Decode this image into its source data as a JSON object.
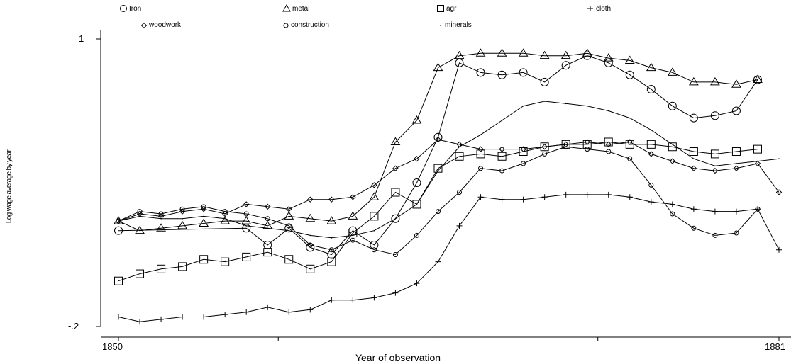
{
  "chart_data": {
    "type": "line",
    "xlabel": "Year of observation",
    "ylabel": "Log wage average by year",
    "xlim": [
      1850,
      1881
    ],
    "ylim": [
      -0.2,
      1
    ],
    "x_ticks": [
      "1850",
      "1881"
    ],
    "y_ticks": [
      "1",
      "-.2"
    ],
    "legend_position": "top",
    "series": [
      {
        "name": "Iron",
        "marker": "circle-large",
        "x": [
          1850,
          1856,
          1857,
          1858,
          1859,
          1860,
          1861,
          1862,
          1863,
          1864,
          1865,
          1866,
          1867,
          1868,
          1869,
          1870,
          1871,
          1872,
          1873,
          1874,
          1875,
          1876,
          1877,
          1878,
          1879,
          1880
        ],
        "y": [
          0.2,
          0.21,
          0.14,
          0.21,
          0.13,
          0.1,
          0.2,
          0.14,
          0.25,
          0.4,
          0.59,
          0.9,
          0.86,
          0.85,
          0.86,
          0.82,
          0.89,
          0.93,
          0.9,
          0.85,
          0.79,
          0.72,
          0.67,
          0.68,
          0.7,
          0.83
        ]
      },
      {
        "name": "metal",
        "marker": "triangle",
        "x": [
          1850,
          1851,
          1852,
          1853,
          1854,
          1855,
          1856,
          1857,
          1858,
          1859,
          1860,
          1861,
          1862,
          1863,
          1864,
          1865,
          1866,
          1867,
          1868,
          1869,
          1870,
          1871,
          1872,
          1873,
          1874,
          1875,
          1876,
          1877,
          1878,
          1879,
          1880
        ],
        "y": [
          0.24,
          0.2,
          0.21,
          0.22,
          0.23,
          0.24,
          0.24,
          0.22,
          0.26,
          0.25,
          0.24,
          0.26,
          0.34,
          0.57,
          0.66,
          0.88,
          0.93,
          0.94,
          0.94,
          0.94,
          0.93,
          0.93,
          0.94,
          0.92,
          0.91,
          0.88,
          0.86,
          0.82,
          0.82,
          0.81,
          0.83
        ]
      },
      {
        "name": "agr",
        "marker": "square",
        "x": [
          1850,
          1851,
          1852,
          1853,
          1854,
          1855,
          1856,
          1857,
          1858,
          1859,
          1860,
          1861,
          1862,
          1863,
          1864,
          1865,
          1866,
          1867,
          1868,
          1869,
          1870,
          1871,
          1872,
          1873,
          1874,
          1875,
          1876,
          1877,
          1878,
          1879,
          1880
        ],
        "y": [
          -0.01,
          0.02,
          0.04,
          0.05,
          0.08,
          0.07,
          0.09,
          0.11,
          0.08,
          0.04,
          0.07,
          0.19,
          0.26,
          0.36,
          0.31,
          0.46,
          0.51,
          0.52,
          0.51,
          0.53,
          0.55,
          0.56,
          0.56,
          0.57,
          0.56,
          0.56,
          0.55,
          0.53,
          0.52,
          0.53,
          0.54
        ]
      },
      {
        "name": "cloth",
        "marker": "plus",
        "x": [
          1850,
          1851,
          1852,
          1853,
          1854,
          1855,
          1856,
          1857,
          1858,
          1859,
          1860,
          1861,
          1862,
          1863,
          1864,
          1865,
          1866,
          1867,
          1868,
          1869,
          1870,
          1871,
          1872,
          1873,
          1874,
          1875,
          1876,
          1877,
          1878,
          1879,
          1880,
          1881
        ],
        "y": [
          -0.16,
          -0.18,
          -0.17,
          -0.16,
          -0.16,
          -0.15,
          -0.14,
          -0.12,
          -0.14,
          -0.13,
          -0.09,
          -0.09,
          -0.08,
          -0.06,
          -0.02,
          0.07,
          0.22,
          0.34,
          0.33,
          0.33,
          0.34,
          0.35,
          0.35,
          0.35,
          0.34,
          0.32,
          0.31,
          0.29,
          0.28,
          0.28,
          0.29,
          0.12
        ]
      },
      {
        "name": "woodwork",
        "marker": "diamond",
        "x": [
          1850,
          1851,
          1852,
          1853,
          1854,
          1855,
          1856,
          1857,
          1858,
          1859,
          1860,
          1861,
          1862,
          1863,
          1864,
          1865,
          1866,
          1867,
          1868,
          1869,
          1870,
          1871,
          1872,
          1873,
          1874,
          1875,
          1876,
          1877,
          1878,
          1879,
          1880,
          1881
        ],
        "y": [
          0.24,
          0.27,
          0.26,
          0.28,
          0.29,
          0.27,
          0.31,
          0.3,
          0.29,
          0.33,
          0.33,
          0.34,
          0.39,
          0.46,
          0.5,
          0.58,
          0.56,
          0.54,
          0.54,
          0.54,
          0.55,
          0.56,
          0.57,
          0.56,
          0.57,
          0.52,
          0.49,
          0.46,
          0.45,
          0.46,
          0.48,
          0.36
        ]
      },
      {
        "name": "construction",
        "marker": "circle-small",
        "x": [
          1850,
          1851,
          1852,
          1853,
          1854,
          1855,
          1856,
          1857,
          1858,
          1859,
          1860,
          1861,
          1862,
          1863,
          1864,
          1865,
          1866,
          1867,
          1868,
          1869,
          1870,
          1871,
          1872,
          1873,
          1874,
          1875,
          1876,
          1877,
          1878,
          1879,
          1880
        ],
        "y": [
          0.24,
          0.28,
          0.27,
          0.29,
          0.3,
          0.28,
          0.27,
          0.25,
          0.22,
          0.14,
          0.12,
          0.16,
          0.12,
          0.1,
          0.18,
          0.28,
          0.36,
          0.46,
          0.45,
          0.48,
          0.52,
          0.55,
          0.54,
          0.53,
          0.5,
          0.39,
          0.27,
          0.21,
          0.18,
          0.19,
          0.29
        ]
      },
      {
        "name": "minerals",
        "marker": "dot",
        "x": [
          1850,
          1851,
          1852,
          1853,
          1854,
          1855,
          1856,
          1857,
          1858,
          1859,
          1860,
          1861,
          1862,
          1863,
          1864,
          1865,
          1866,
          1867,
          1868,
          1869,
          1870,
          1871,
          1872,
          1873,
          1874,
          1875,
          1876,
          1877,
          1878,
          1879,
          1880,
          1881
        ],
        "y": [
          0.24,
          0.26,
          0.25,
          0.25,
          0.26,
          0.25,
          0.22,
          0.21,
          0.2,
          0.18,
          0.17,
          0.18,
          0.2,
          0.25,
          0.31,
          0.45,
          0.55,
          0.6,
          0.66,
          0.72,
          0.74,
          0.73,
          0.72,
          0.7,
          0.67,
          0.62,
          0.56,
          0.5,
          0.47,
          0.48,
          0.49,
          0.5
        ]
      }
    ]
  }
}
